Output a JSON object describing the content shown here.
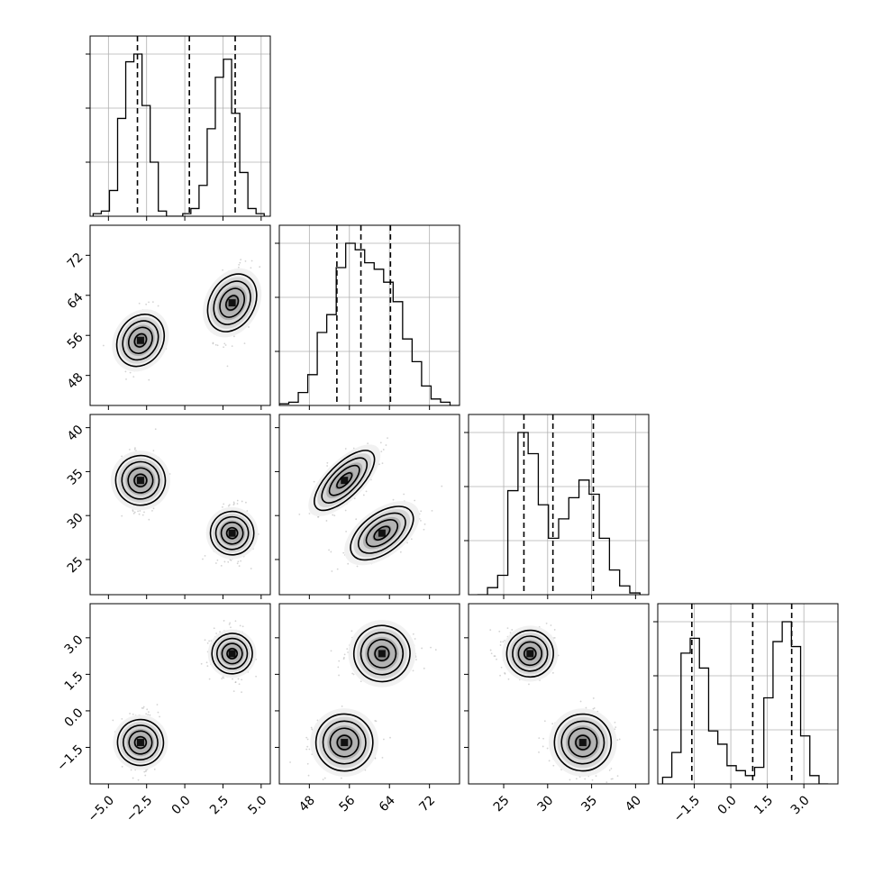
{
  "chart_data": {
    "type": "corner",
    "parameters": [
      {
        "range": [
          -6.2,
          5.6
        ],
        "ticks": [
          -5.0,
          -2.5,
          0.0,
          2.5,
          5.0
        ],
        "tick_labels": [
          "−5.0",
          "−2.5",
          "0.0",
          "2.5",
          "5.0"
        ]
      },
      {
        "range": [
          42.0,
          78.0
        ],
        "ticks": [
          48,
          56,
          64,
          72
        ],
        "tick_labels": [
          "48",
          "56",
          "64",
          "72"
        ]
      },
      {
        "range": [
          21.0,
          41.5
        ],
        "ticks": [
          25,
          30,
          35,
          40
        ],
        "tick_labels": [
          "25",
          "30",
          "35",
          "40"
        ]
      },
      {
        "range": [
          -3.0,
          4.4
        ],
        "ticks": [
          -1.5,
          0.0,
          1.5,
          3.0
        ],
        "tick_labels": [
          "−1.5",
          "0.0",
          "1.5",
          "3.0"
        ]
      }
    ],
    "histograms": [
      {
        "bins": [
          -6.0,
          5.2
        ],
        "counts": [
          1,
          2,
          10,
          38,
          60,
          63,
          43,
          21,
          2,
          0,
          0,
          1,
          3,
          12,
          34,
          54,
          61,
          40,
          17,
          3,
          1
        ],
        "quantiles": [
          -3.1,
          0.3,
          3.3
        ]
      },
      {
        "bins": [
          42.0,
          78.0
        ],
        "counts": [
          1,
          2,
          8,
          19,
          45,
          56,
          85,
          100,
          96,
          88,
          84,
          76,
          64,
          41,
          27,
          12,
          4,
          2,
          0
        ],
        "quantiles": [
          53.5,
          58.3,
          64.2
        ]
      },
      {
        "bins": [
          22.0,
          40.5
        ],
        "counts": [
          0,
          4,
          11,
          59,
          92,
          80,
          51,
          32,
          43,
          55,
          65,
          57,
          32,
          14,
          5,
          1
        ],
        "quantiles": [
          27.3,
          30.6,
          35.2
        ]
      },
      {
        "bins": [
          -2.8,
          4.0
        ],
        "counts": [
          4,
          19,
          79,
          88,
          70,
          32,
          24,
          11,
          8,
          5,
          10,
          52,
          86,
          98,
          83,
          29,
          5,
          0
        ],
        "quantiles": [
          -1.6,
          0.9,
          2.5
        ]
      }
    ],
    "clusters": [
      {
        "mean": [
          -2.9,
          55.0,
          34.0,
          -1.3
        ],
        "sd": [
          0.6,
          3.0,
          1.7,
          0.55
        ],
        "corr": [
          [
            1,
            0.2,
            0,
            0
          ],
          [
            0.2,
            1,
            0.7,
            0
          ],
          [
            0,
            0.7,
            1,
            0
          ],
          [
            0,
            0,
            0,
            1
          ]
        ],
        "weight": 0.5
      },
      {
        "mean": [
          3.1,
          62.5,
          28.0,
          2.35
        ],
        "sd": [
          0.6,
          3.3,
          1.4,
          0.45
        ],
        "corr": [
          [
            1,
            0.3,
            0,
            0
          ],
          [
            0.3,
            1,
            0.55,
            0
          ],
          [
            0,
            0.55,
            1,
            0
          ],
          [
            0,
            0,
            0,
            1
          ]
        ],
        "weight": 0.5
      }
    ],
    "grid": true
  }
}
